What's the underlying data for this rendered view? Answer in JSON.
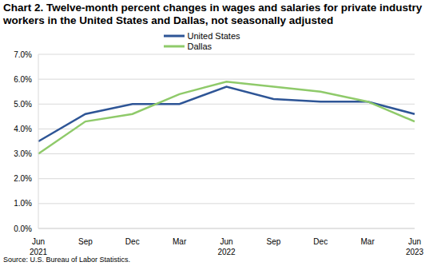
{
  "chart_data": {
    "type": "line",
    "title": "Chart 2. Twelve-month percent changes in wages and salaries for private industry workers in the United States and Dallas, not seasonally adjusted",
    "source": "Source: U.S. Bureau of Labor Statistics.",
    "categories": [
      "Jun 2021",
      "Sep",
      "Dec",
      "Mar",
      "Jun 2022",
      "Sep",
      "Dec",
      "Mar",
      "Jun 2023"
    ],
    "series": [
      {
        "name": "United States",
        "color": "#2e5596",
        "values": [
          3.5,
          4.6,
          5.0,
          5.0,
          5.7,
          5.2,
          5.1,
          5.1,
          4.6
        ]
      },
      {
        "name": "Dallas",
        "color": "#8fca6a",
        "values": [
          3.0,
          4.3,
          4.6,
          5.4,
          5.9,
          5.7,
          5.5,
          5.1,
          4.3
        ]
      }
    ],
    "ylim": [
      0,
      7
    ],
    "yticks": [
      {
        "value": 0,
        "label": "0.0%"
      },
      {
        "value": 1,
        "label": "1.0%"
      },
      {
        "value": 2,
        "label": "2.0%"
      },
      {
        "value": 3,
        "label": "3.0%"
      },
      {
        "value": 4,
        "label": "4.0%"
      },
      {
        "value": 5,
        "label": "5.0%"
      },
      {
        "value": 6,
        "label": "6.0%"
      },
      {
        "value": 7,
        "label": "7.0%"
      }
    ],
    "grid": true,
    "legend": "top"
  }
}
